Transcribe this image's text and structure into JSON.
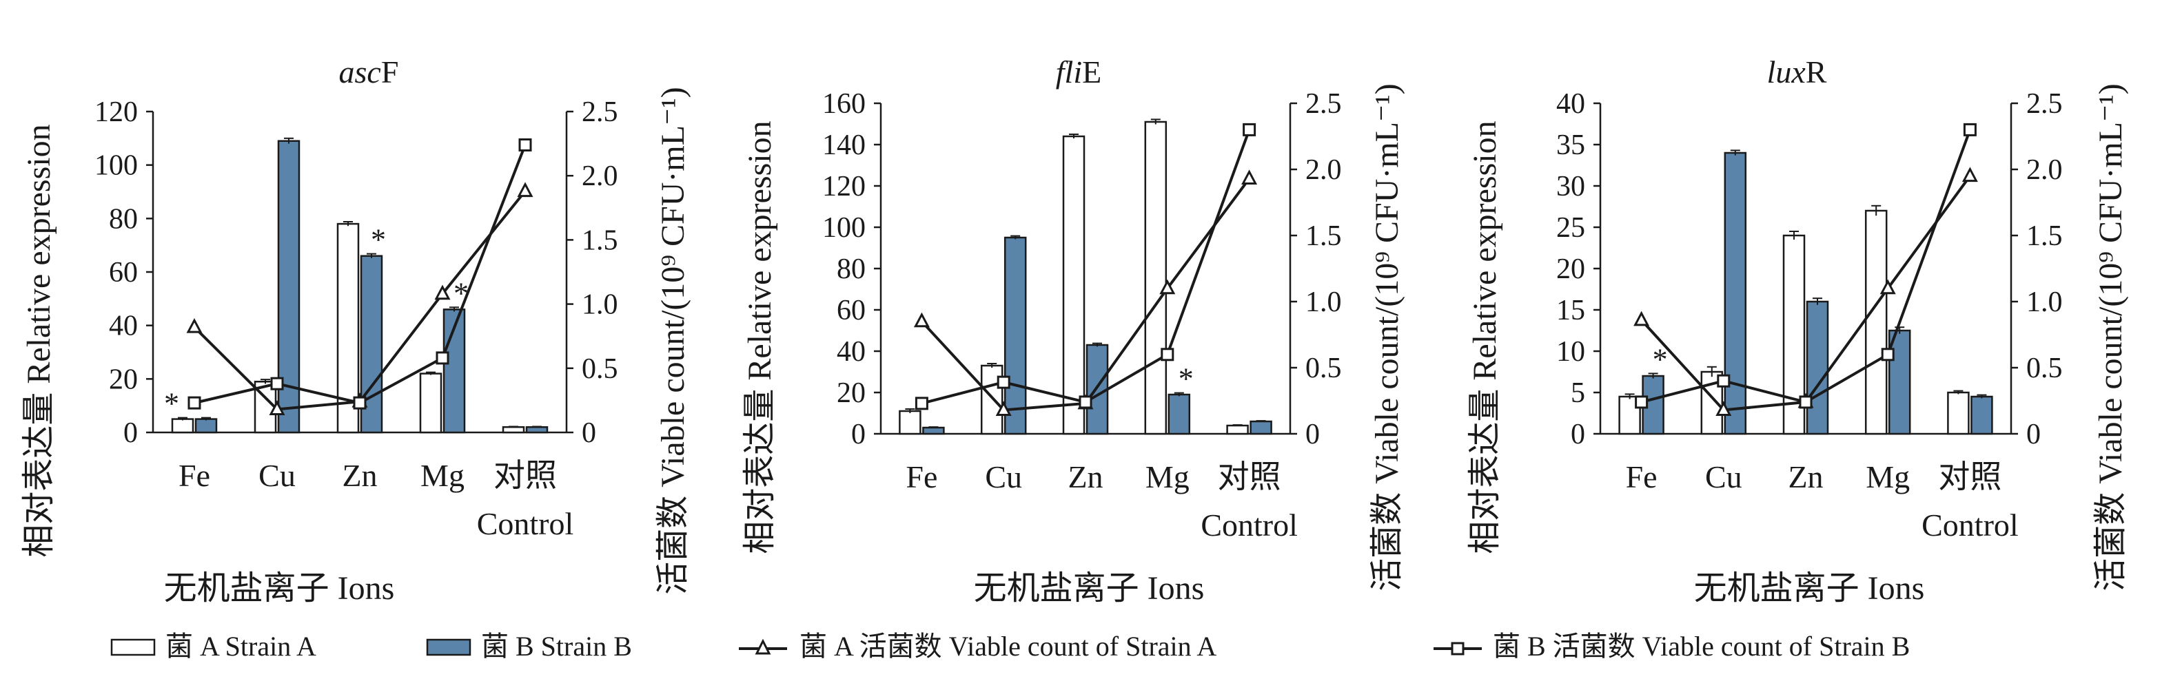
{
  "legend": {
    "strain_a": "菌 A Strain A",
    "strain_b": "菌 B Strain B",
    "count_a": "菌 A 活菌数 Viable count of Strain A",
    "count_b": "菌 B 活菌数 Viable count of Strain B"
  },
  "colors": {
    "strain_a_fill": "#ffffff",
    "strain_b_fill": "#5b84aa",
    "line": "#1a1a1a"
  },
  "chart_data": [
    {
      "type": "bar",
      "title_italic": "asc",
      "title_plain": "F",
      "categories": [
        "Fe",
        "Cu",
        "Zn",
        "Mg",
        "对照"
      ],
      "category_sub": [
        "",
        "",
        "",
        "",
        "Control"
      ],
      "xlabel": "无机盐离子 Ions",
      "ylabel": "相对表达量 Relative expression",
      "y2label": "活菌数 Viable count/(10⁹ CFU·mL⁻¹)",
      "ylim": [
        0,
        120
      ],
      "yticks": [
        "0",
        "20",
        "40",
        "60",
        "80",
        "100",
        "120"
      ],
      "y2lim": [
        0,
        2.5
      ],
      "y2ticks": [
        "0",
        "0.5",
        "1.0",
        "1.5",
        "2.0",
        "2.5"
      ],
      "series": [
        {
          "name": "菌 A Strain A",
          "kind": "bar",
          "values": [
            5,
            19,
            78,
            22,
            2
          ],
          "errors": [
            0.5,
            0.8,
            0.8,
            0.5,
            0.2
          ]
        },
        {
          "name": "菌 B Strain B",
          "kind": "bar",
          "values": [
            5,
            109,
            66,
            46,
            2
          ],
          "errors": [
            0.5,
            1.0,
            0.8,
            0.8,
            0.2
          ]
        },
        {
          "name": "菌 A 活菌数 Viable count of Strain A",
          "kind": "line",
          "marker": "triangle",
          "values": [
            0.82,
            0.18,
            0.24,
            1.08,
            1.88
          ]
        },
        {
          "name": "菌 B 活菌数 Viable count of Strain B",
          "kind": "line",
          "marker": "square",
          "values": [
            0.23,
            0.38,
            0.23,
            0.58,
            2.24
          ]
        }
      ],
      "annotations": [
        {
          "text": "*",
          "category": "Fe",
          "series": "菌 A Strain A"
        },
        {
          "text": "*",
          "category": "Zn",
          "series": "菌 B Strain B"
        },
        {
          "text": "*",
          "category": "Mg",
          "series": "菌 B Strain B"
        }
      ]
    },
    {
      "type": "bar",
      "title_italic": "fli",
      "title_plain": "E",
      "categories": [
        "Fe",
        "Cu",
        "Zn",
        "Mg",
        "对照"
      ],
      "category_sub": [
        "",
        "",
        "",
        "",
        "Control"
      ],
      "xlabel": "无机盐离子 Ions",
      "ylabel": "相对表达量 Relative expression",
      "y2label": "活菌数 Viable count/(10⁹ CFU·mL⁻¹)",
      "ylim": [
        0,
        160
      ],
      "yticks": [
        "0",
        "20",
        "40",
        "60",
        "80",
        "100",
        "120",
        "140",
        "160"
      ],
      "y2lim": [
        0,
        2.5
      ],
      "y2ticks": [
        "0",
        "0.5",
        "1.0",
        "1.5",
        "2.0",
        "2.5"
      ],
      "series": [
        {
          "name": "菌 A Strain A",
          "kind": "bar",
          "values": [
            11,
            33,
            144,
            151,
            4
          ],
          "errors": [
            1.0,
            1.0,
            1.0,
            1.2,
            0.3
          ]
        },
        {
          "name": "菌 B Strain B",
          "kind": "bar",
          "values": [
            3,
            95,
            43,
            19,
            6
          ],
          "errors": [
            0.3,
            0.8,
            0.8,
            0.8,
            0.3
          ]
        },
        {
          "name": "菌 A 活菌数 Viable count of Strain A",
          "kind": "line",
          "marker": "triangle",
          "values": [
            0.85,
            0.18,
            0.23,
            1.1,
            1.93
          ]
        },
        {
          "name": "菌 B 活菌数 Viable count of Strain B",
          "kind": "line",
          "marker": "square",
          "values": [
            0.23,
            0.39,
            0.24,
            0.6,
            2.3
          ]
        }
      ],
      "annotations": [
        {
          "text": "*",
          "category": "Mg",
          "series": "菌 B Strain B"
        }
      ]
    },
    {
      "type": "bar",
      "title_italic": "lux",
      "title_plain": "R",
      "categories": [
        "Fe",
        "Cu",
        "Zn",
        "Mg",
        "对照"
      ],
      "category_sub": [
        "",
        "",
        "",
        "",
        "Control"
      ],
      "xlabel": "无机盐离子 Ions",
      "ylabel": "相对表达量 Relative expression",
      "y2label": "活菌数 Viable count/(10⁹ CFU·mL⁻¹)",
      "ylim": [
        0,
        40
      ],
      "yticks": [
        "0",
        "5",
        "10",
        "15",
        "20",
        "25",
        "30",
        "35",
        "40"
      ],
      "y2lim": [
        0,
        2.5
      ],
      "y2ticks": [
        "0",
        "0.5",
        "1.0",
        "1.5",
        "2.0",
        "2.5"
      ],
      "series": [
        {
          "name": "菌 A Strain A",
          "kind": "bar",
          "values": [
            4.5,
            7.5,
            24,
            27,
            5
          ],
          "errors": [
            0.3,
            0.6,
            0.5,
            0.6,
            0.2
          ]
        },
        {
          "name": "菌 B Strain B",
          "kind": "bar",
          "values": [
            7,
            34,
            16,
            12.5,
            4.5
          ],
          "errors": [
            0.3,
            0.3,
            0.4,
            0.4,
            0.2
          ]
        },
        {
          "name": "菌 A 活菌数 Viable count of Strain A",
          "kind": "line",
          "marker": "triangle",
          "values": [
            0.86,
            0.18,
            0.24,
            1.1,
            1.95
          ]
        },
        {
          "name": "菌 B 活菌数 Viable count of Strain B",
          "kind": "line",
          "marker": "square",
          "values": [
            0.24,
            0.4,
            0.24,
            0.6,
            2.3
          ]
        }
      ],
      "annotations": [
        {
          "text": "*",
          "category": "Fe",
          "series": "菌 B Strain B"
        }
      ]
    }
  ]
}
